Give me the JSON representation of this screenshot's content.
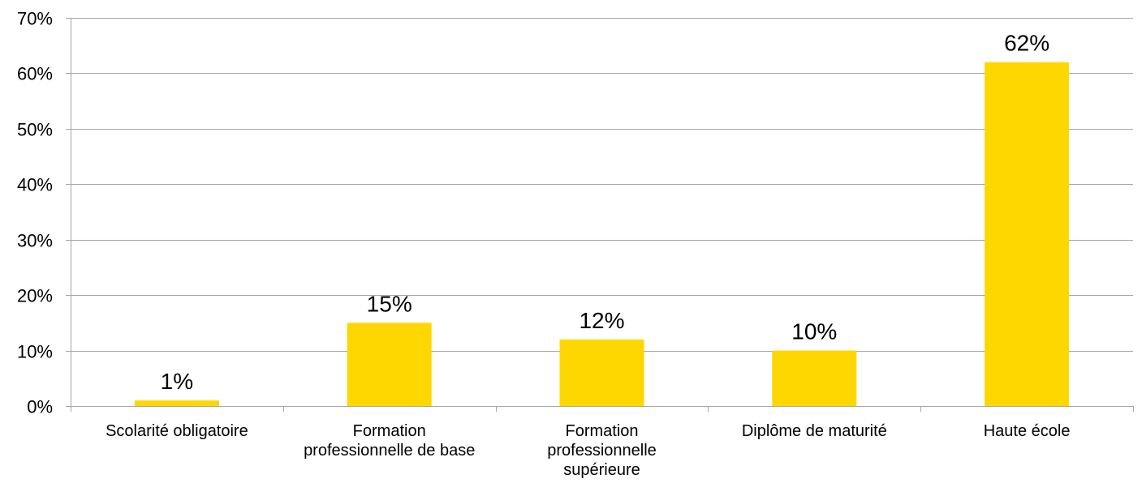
{
  "chart_data": {
    "type": "bar",
    "title": "",
    "xlabel": "",
    "ylabel": "",
    "categories": [
      "Scolarité obligatoire",
      "Formation professionnelle de base",
      "Formation professionnelle supérieure",
      "Diplôme de maturité",
      "Haute école"
    ],
    "category_label_lines": [
      [
        "Scolarité obligatoire"
      ],
      [
        "Formation",
        "professionnelle de base"
      ],
      [
        "Formation",
        "professionnelle",
        "supérieure"
      ],
      [
        "Diplôme de maturité"
      ],
      [
        "Haute école"
      ]
    ],
    "values": [
      1,
      15,
      12,
      10,
      62
    ],
    "data_labels": [
      "1%",
      "15%",
      "12%",
      "10%",
      "62%"
    ],
    "ylim": [
      0,
      70
    ],
    "yticks": [
      0,
      10,
      20,
      30,
      40,
      50,
      60,
      70
    ],
    "ytick_labels": [
      "0%",
      "10%",
      "20%",
      "30%",
      "40%",
      "50%",
      "60%",
      "70%"
    ],
    "grid": true,
    "legend": "none",
    "bar_color": "#ffd700"
  }
}
